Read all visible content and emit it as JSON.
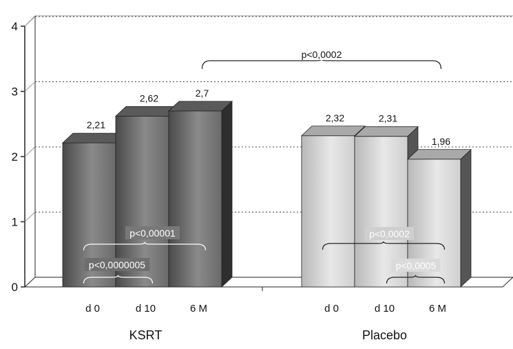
{
  "chart_data": {
    "type": "bar",
    "style": "3d-clustered",
    "ylim": [
      0,
      4
    ],
    "yticks": [
      "0",
      "1",
      "2",
      "3",
      "4"
    ],
    "gridlines": "dotted-horizontal",
    "groups": [
      {
        "name": "KSRT",
        "categories": [
          "d 0",
          "d 10",
          "6 M"
        ],
        "values": [
          2.21,
          2.62,
          2.7
        ],
        "value_labels": [
          "2,21",
          "2,62",
          "2,7"
        ],
        "color": "#6e6e6e"
      },
      {
        "name": "Placebo",
        "categories": [
          "d 0",
          "d 10",
          "6 M"
        ],
        "values": [
          2.32,
          2.31,
          1.96
        ],
        "value_labels": [
          "2,32",
          "2,31",
          "1,96"
        ],
        "color": "#c4c4c4"
      }
    ],
    "annotations": [
      {
        "text": "p<0,0002",
        "scope": "KSRT 6 M vs Placebo 6 M"
      },
      {
        "text": "p<0,00001",
        "scope": "KSRT d 0 vs 6 M"
      },
      {
        "text": "p<0,0000005",
        "scope": "KSRT d 0 vs d 10"
      },
      {
        "text": "p<0,0002",
        "scope": "Placebo d 0 vs 6 M"
      },
      {
        "text": "p<0,0005",
        "scope": "Placebo d 10 vs 6 M"
      }
    ]
  }
}
